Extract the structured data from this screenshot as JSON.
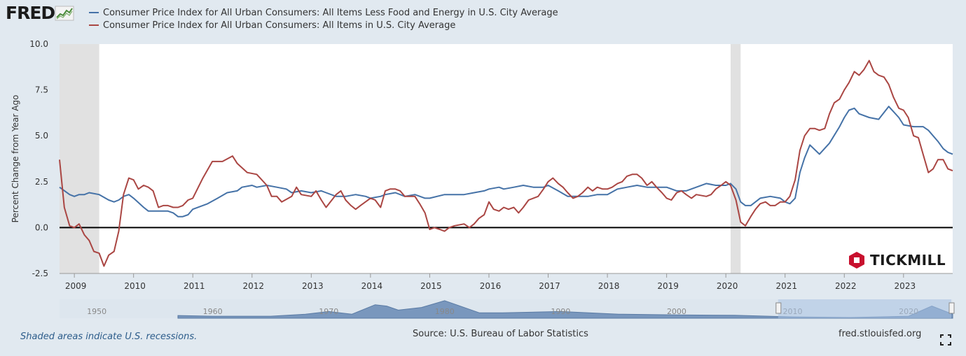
{
  "header": {
    "logo_text": "FRED",
    "logo_icon": "fred-chart-logo-icon"
  },
  "legend": {
    "series": [
      {
        "name": "Consumer Price Index for All Urban Consumers: All Items Less Food and Energy in U.S. City Average",
        "color": "#4572a7"
      },
      {
        "name": "Consumer Price Index for All Urban Consumers: All Items in U.S. City Average",
        "color": "#aa4643"
      }
    ]
  },
  "footer": {
    "recession_note": "Shaded areas indicate U.S. recessions.",
    "source": "Source: U.S. Bureau of Labor Statistics",
    "site": "fred.stlouisfed.org",
    "expand_icon": "expand-icon"
  },
  "watermark": {
    "text": "TICKMILL",
    "color": "#c8102e"
  },
  "navigator": {
    "ticks": [
      "1950",
      "1960",
      "1970",
      "1980",
      "1990",
      "2000",
      "2010",
      "2020"
    ]
  },
  "chart_data": {
    "type": "line",
    "title": "",
    "xlabel": "",
    "ylabel": "Percent Change from Year Ago",
    "x_range": [
      2008.75,
      2023.83
    ],
    "ylim": [
      -2.5,
      10.0
    ],
    "y_ticks": [
      "10.0",
      "7.5",
      "5.0",
      "2.5",
      "0.0",
      "-2.5"
    ],
    "x_ticks": [
      "2009",
      "2010",
      "2011",
      "2012",
      "2013",
      "2014",
      "2015",
      "2016",
      "2017",
      "2018",
      "2019",
      "2020",
      "2021",
      "2022",
      "2023"
    ],
    "recessions": [
      [
        2008.75,
        2009.42
      ],
      [
        2020.08,
        2020.25
      ]
    ],
    "grid": false,
    "legend": "top",
    "series": [
      {
        "name": "Consumer Price Index for All Urban Consumers: All Items Less Food and Energy in U.S. City Average",
        "color": "#4572a7",
        "points": [
          [
            2008.75,
            2.2
          ],
          [
            2008.92,
            1.8
          ],
          [
            2009.0,
            1.7
          ],
          [
            2009.08,
            1.8
          ],
          [
            2009.17,
            1.8
          ],
          [
            2009.25,
            1.9
          ],
          [
            2009.42,
            1.8
          ],
          [
            2009.58,
            1.5
          ],
          [
            2009.67,
            1.4
          ],
          [
            2009.75,
            1.5
          ],
          [
            2009.83,
            1.7
          ],
          [
            2009.92,
            1.8
          ],
          [
            2010.0,
            1.6
          ],
          [
            2010.17,
            1.1
          ],
          [
            2010.25,
            0.9
          ],
          [
            2010.42,
            0.9
          ],
          [
            2010.58,
            0.9
          ],
          [
            2010.67,
            0.8
          ],
          [
            2010.75,
            0.6
          ],
          [
            2010.83,
            0.6
          ],
          [
            2010.92,
            0.7
          ],
          [
            2011.0,
            1.0
          ],
          [
            2011.25,
            1.3
          ],
          [
            2011.42,
            1.6
          ],
          [
            2011.58,
            1.9
          ],
          [
            2011.75,
            2.0
          ],
          [
            2011.83,
            2.2
          ],
          [
            2012.0,
            2.3
          ],
          [
            2012.08,
            2.2
          ],
          [
            2012.25,
            2.3
          ],
          [
            2012.42,
            2.2
          ],
          [
            2012.58,
            2.1
          ],
          [
            2012.67,
            1.9
          ],
          [
            2012.83,
            2.0
          ],
          [
            2013.0,
            1.9
          ],
          [
            2013.17,
            2.0
          ],
          [
            2013.25,
            1.9
          ],
          [
            2013.42,
            1.7
          ],
          [
            2013.58,
            1.7
          ],
          [
            2013.75,
            1.8
          ],
          [
            2013.92,
            1.7
          ],
          [
            2014.0,
            1.6
          ],
          [
            2014.17,
            1.7
          ],
          [
            2014.25,
            1.8
          ],
          [
            2014.42,
            1.9
          ],
          [
            2014.58,
            1.7
          ],
          [
            2014.75,
            1.8
          ],
          [
            2014.92,
            1.6
          ],
          [
            2015.0,
            1.6
          ],
          [
            2015.25,
            1.8
          ],
          [
            2015.42,
            1.8
          ],
          [
            2015.58,
            1.8
          ],
          [
            2015.75,
            1.9
          ],
          [
            2015.92,
            2.0
          ],
          [
            2016.0,
            2.1
          ],
          [
            2016.17,
            2.2
          ],
          [
            2016.25,
            2.1
          ],
          [
            2016.42,
            2.2
          ],
          [
            2016.58,
            2.3
          ],
          [
            2016.75,
            2.2
          ],
          [
            2016.92,
            2.2
          ],
          [
            2017.0,
            2.3
          ],
          [
            2017.17,
            2.0
          ],
          [
            2017.33,
            1.7
          ],
          [
            2017.5,
            1.7
          ],
          [
            2017.67,
            1.7
          ],
          [
            2017.83,
            1.8
          ],
          [
            2018.0,
            1.8
          ],
          [
            2018.17,
            2.1
          ],
          [
            2018.33,
            2.2
          ],
          [
            2018.5,
            2.3
          ],
          [
            2018.67,
            2.2
          ],
          [
            2018.83,
            2.2
          ],
          [
            2019.0,
            2.2
          ],
          [
            2019.17,
            2.0
          ],
          [
            2019.33,
            2.0
          ],
          [
            2019.5,
            2.2
          ],
          [
            2019.67,
            2.4
          ],
          [
            2019.83,
            2.3
          ],
          [
            2020.0,
            2.3
          ],
          [
            2020.08,
            2.4
          ],
          [
            2020.17,
            2.1
          ],
          [
            2020.25,
            1.4
          ],
          [
            2020.33,
            1.2
          ],
          [
            2020.42,
            1.2
          ],
          [
            2020.58,
            1.6
          ],
          [
            2020.75,
            1.7
          ],
          [
            2020.92,
            1.6
          ],
          [
            2021.0,
            1.4
          ],
          [
            2021.08,
            1.3
          ],
          [
            2021.17,
            1.6
          ],
          [
            2021.25,
            3.0
          ],
          [
            2021.33,
            3.8
          ],
          [
            2021.42,
            4.5
          ],
          [
            2021.58,
            4.0
          ],
          [
            2021.75,
            4.6
          ],
          [
            2021.92,
            5.5
          ],
          [
            2022.0,
            6.0
          ],
          [
            2022.08,
            6.4
          ],
          [
            2022.17,
            6.5
          ],
          [
            2022.25,
            6.2
          ],
          [
            2022.42,
            6.0
          ],
          [
            2022.58,
            5.9
          ],
          [
            2022.75,
            6.6
          ],
          [
            2022.92,
            6.0
          ],
          [
            2023.0,
            5.6
          ],
          [
            2023.17,
            5.5
          ],
          [
            2023.33,
            5.5
          ],
          [
            2023.42,
            5.3
          ],
          [
            2023.58,
            4.7
          ],
          [
            2023.67,
            4.3
          ],
          [
            2023.75,
            4.1
          ],
          [
            2023.83,
            4.0
          ]
        ]
      },
      {
        "name": "Consumer Price Index for All Urban Consumers: All Items in U.S. City Average",
        "color": "#aa4643",
        "points": [
          [
            2008.75,
            3.7
          ],
          [
            2008.83,
            1.1
          ],
          [
            2008.92,
            0.1
          ],
          [
            2009.0,
            0.0
          ],
          [
            2009.08,
            0.2
          ],
          [
            2009.17,
            -0.4
          ],
          [
            2009.25,
            -0.7
          ],
          [
            2009.33,
            -1.3
          ],
          [
            2009.42,
            -1.4
          ],
          [
            2009.5,
            -2.1
          ],
          [
            2009.58,
            -1.5
          ],
          [
            2009.67,
            -1.3
          ],
          [
            2009.75,
            -0.2
          ],
          [
            2009.83,
            1.8
          ],
          [
            2009.92,
            2.7
          ],
          [
            2010.0,
            2.6
          ],
          [
            2010.08,
            2.1
          ],
          [
            2010.17,
            2.3
          ],
          [
            2010.25,
            2.2
          ],
          [
            2010.33,
            2.0
          ],
          [
            2010.42,
            1.1
          ],
          [
            2010.5,
            1.2
          ],
          [
            2010.58,
            1.2
          ],
          [
            2010.67,
            1.1
          ],
          [
            2010.75,
            1.1
          ],
          [
            2010.83,
            1.2
          ],
          [
            2010.92,
            1.5
          ],
          [
            2011.0,
            1.6
          ],
          [
            2011.17,
            2.7
          ],
          [
            2011.33,
            3.6
          ],
          [
            2011.5,
            3.6
          ],
          [
            2011.67,
            3.9
          ],
          [
            2011.75,
            3.5
          ],
          [
            2011.92,
            3.0
          ],
          [
            2012.08,
            2.9
          ],
          [
            2012.25,
            2.3
          ],
          [
            2012.33,
            1.7
          ],
          [
            2012.42,
            1.7
          ],
          [
            2012.5,
            1.4
          ],
          [
            2012.67,
            1.7
          ],
          [
            2012.75,
            2.2
          ],
          [
            2012.83,
            1.8
          ],
          [
            2013.0,
            1.7
          ],
          [
            2013.08,
            2.0
          ],
          [
            2013.17,
            1.5
          ],
          [
            2013.25,
            1.1
          ],
          [
            2013.42,
            1.8
          ],
          [
            2013.5,
            2.0
          ],
          [
            2013.58,
            1.5
          ],
          [
            2013.67,
            1.2
          ],
          [
            2013.75,
            1.0
          ],
          [
            2013.83,
            1.2
          ],
          [
            2014.0,
            1.6
          ],
          [
            2014.08,
            1.5
          ],
          [
            2014.17,
            1.1
          ],
          [
            2014.25,
            2.0
          ],
          [
            2014.33,
            2.1
          ],
          [
            2014.42,
            2.1
          ],
          [
            2014.5,
            2.0
          ],
          [
            2014.58,
            1.7
          ],
          [
            2014.75,
            1.7
          ],
          [
            2014.83,
            1.3
          ],
          [
            2014.92,
            0.8
          ],
          [
            2015.0,
            -0.1
          ],
          [
            2015.08,
            0.0
          ],
          [
            2015.17,
            -0.1
          ],
          [
            2015.25,
            -0.2
          ],
          [
            2015.33,
            0.0
          ],
          [
            2015.42,
            0.1
          ],
          [
            2015.58,
            0.2
          ],
          [
            2015.67,
            0.0
          ],
          [
            2015.75,
            0.2
          ],
          [
            2015.83,
            0.5
          ],
          [
            2015.92,
            0.7
          ],
          [
            2016.0,
            1.4
          ],
          [
            2016.08,
            1.0
          ],
          [
            2016.17,
            0.9
          ],
          [
            2016.25,
            1.1
          ],
          [
            2016.33,
            1.0
          ],
          [
            2016.42,
            1.1
          ],
          [
            2016.5,
            0.8
          ],
          [
            2016.58,
            1.1
          ],
          [
            2016.67,
            1.5
          ],
          [
            2016.75,
            1.6
          ],
          [
            2016.83,
            1.7
          ],
          [
            2016.92,
            2.1
          ],
          [
            2017.0,
            2.5
          ],
          [
            2017.08,
            2.7
          ],
          [
            2017.17,
            2.4
          ],
          [
            2017.25,
            2.2
          ],
          [
            2017.33,
            1.9
          ],
          [
            2017.42,
            1.6
          ],
          [
            2017.5,
            1.7
          ],
          [
            2017.58,
            1.9
          ],
          [
            2017.67,
            2.2
          ],
          [
            2017.75,
            2.0
          ],
          [
            2017.83,
            2.2
          ],
          [
            2017.92,
            2.1
          ],
          [
            2018.0,
            2.1
          ],
          [
            2018.08,
            2.2
          ],
          [
            2018.17,
            2.4
          ],
          [
            2018.25,
            2.5
          ],
          [
            2018.33,
            2.8
          ],
          [
            2018.42,
            2.9
          ],
          [
            2018.5,
            2.9
          ],
          [
            2018.58,
            2.7
          ],
          [
            2018.67,
            2.3
          ],
          [
            2018.75,
            2.5
          ],
          [
            2018.83,
            2.2
          ],
          [
            2018.92,
            1.9
          ],
          [
            2019.0,
            1.6
          ],
          [
            2019.08,
            1.5
          ],
          [
            2019.17,
            1.9
          ],
          [
            2019.25,
            2.0
          ],
          [
            2019.33,
            1.8
          ],
          [
            2019.42,
            1.6
          ],
          [
            2019.5,
            1.8
          ],
          [
            2019.67,
            1.7
          ],
          [
            2019.75,
            1.8
          ],
          [
            2019.83,
            2.1
          ],
          [
            2019.92,
            2.3
          ],
          [
            2020.0,
            2.5
          ],
          [
            2020.08,
            2.3
          ],
          [
            2020.17,
            1.5
          ],
          [
            2020.25,
            0.3
          ],
          [
            2020.33,
            0.1
          ],
          [
            2020.42,
            0.6
          ],
          [
            2020.5,
            1.0
          ],
          [
            2020.58,
            1.3
          ],
          [
            2020.67,
            1.4
          ],
          [
            2020.75,
            1.2
          ],
          [
            2020.83,
            1.2
          ],
          [
            2020.92,
            1.4
          ],
          [
            2021.0,
            1.4
          ],
          [
            2021.08,
            1.7
          ],
          [
            2021.17,
            2.6
          ],
          [
            2021.25,
            4.2
          ],
          [
            2021.33,
            5.0
          ],
          [
            2021.42,
            5.4
          ],
          [
            2021.5,
            5.4
          ],
          [
            2021.58,
            5.3
          ],
          [
            2021.67,
            5.4
          ],
          [
            2021.75,
            6.2
          ],
          [
            2021.83,
            6.8
          ],
          [
            2021.92,
            7.0
          ],
          [
            2022.0,
            7.5
          ],
          [
            2022.08,
            7.9
          ],
          [
            2022.17,
            8.5
          ],
          [
            2022.25,
            8.3
          ],
          [
            2022.33,
            8.6
          ],
          [
            2022.42,
            9.1
          ],
          [
            2022.5,
            8.5
          ],
          [
            2022.58,
            8.3
          ],
          [
            2022.67,
            8.2
          ],
          [
            2022.75,
            7.8
          ],
          [
            2022.83,
            7.1
          ],
          [
            2022.92,
            6.5
          ],
          [
            2023.0,
            6.4
          ],
          [
            2023.08,
            6.0
          ],
          [
            2023.17,
            5.0
          ],
          [
            2023.25,
            4.9
          ],
          [
            2023.33,
            4.0
          ],
          [
            2023.42,
            3.0
          ],
          [
            2023.5,
            3.2
          ],
          [
            2023.58,
            3.7
          ],
          [
            2023.67,
            3.7
          ],
          [
            2023.75,
            3.2
          ],
          [
            2023.83,
            3.1
          ]
        ]
      }
    ]
  }
}
